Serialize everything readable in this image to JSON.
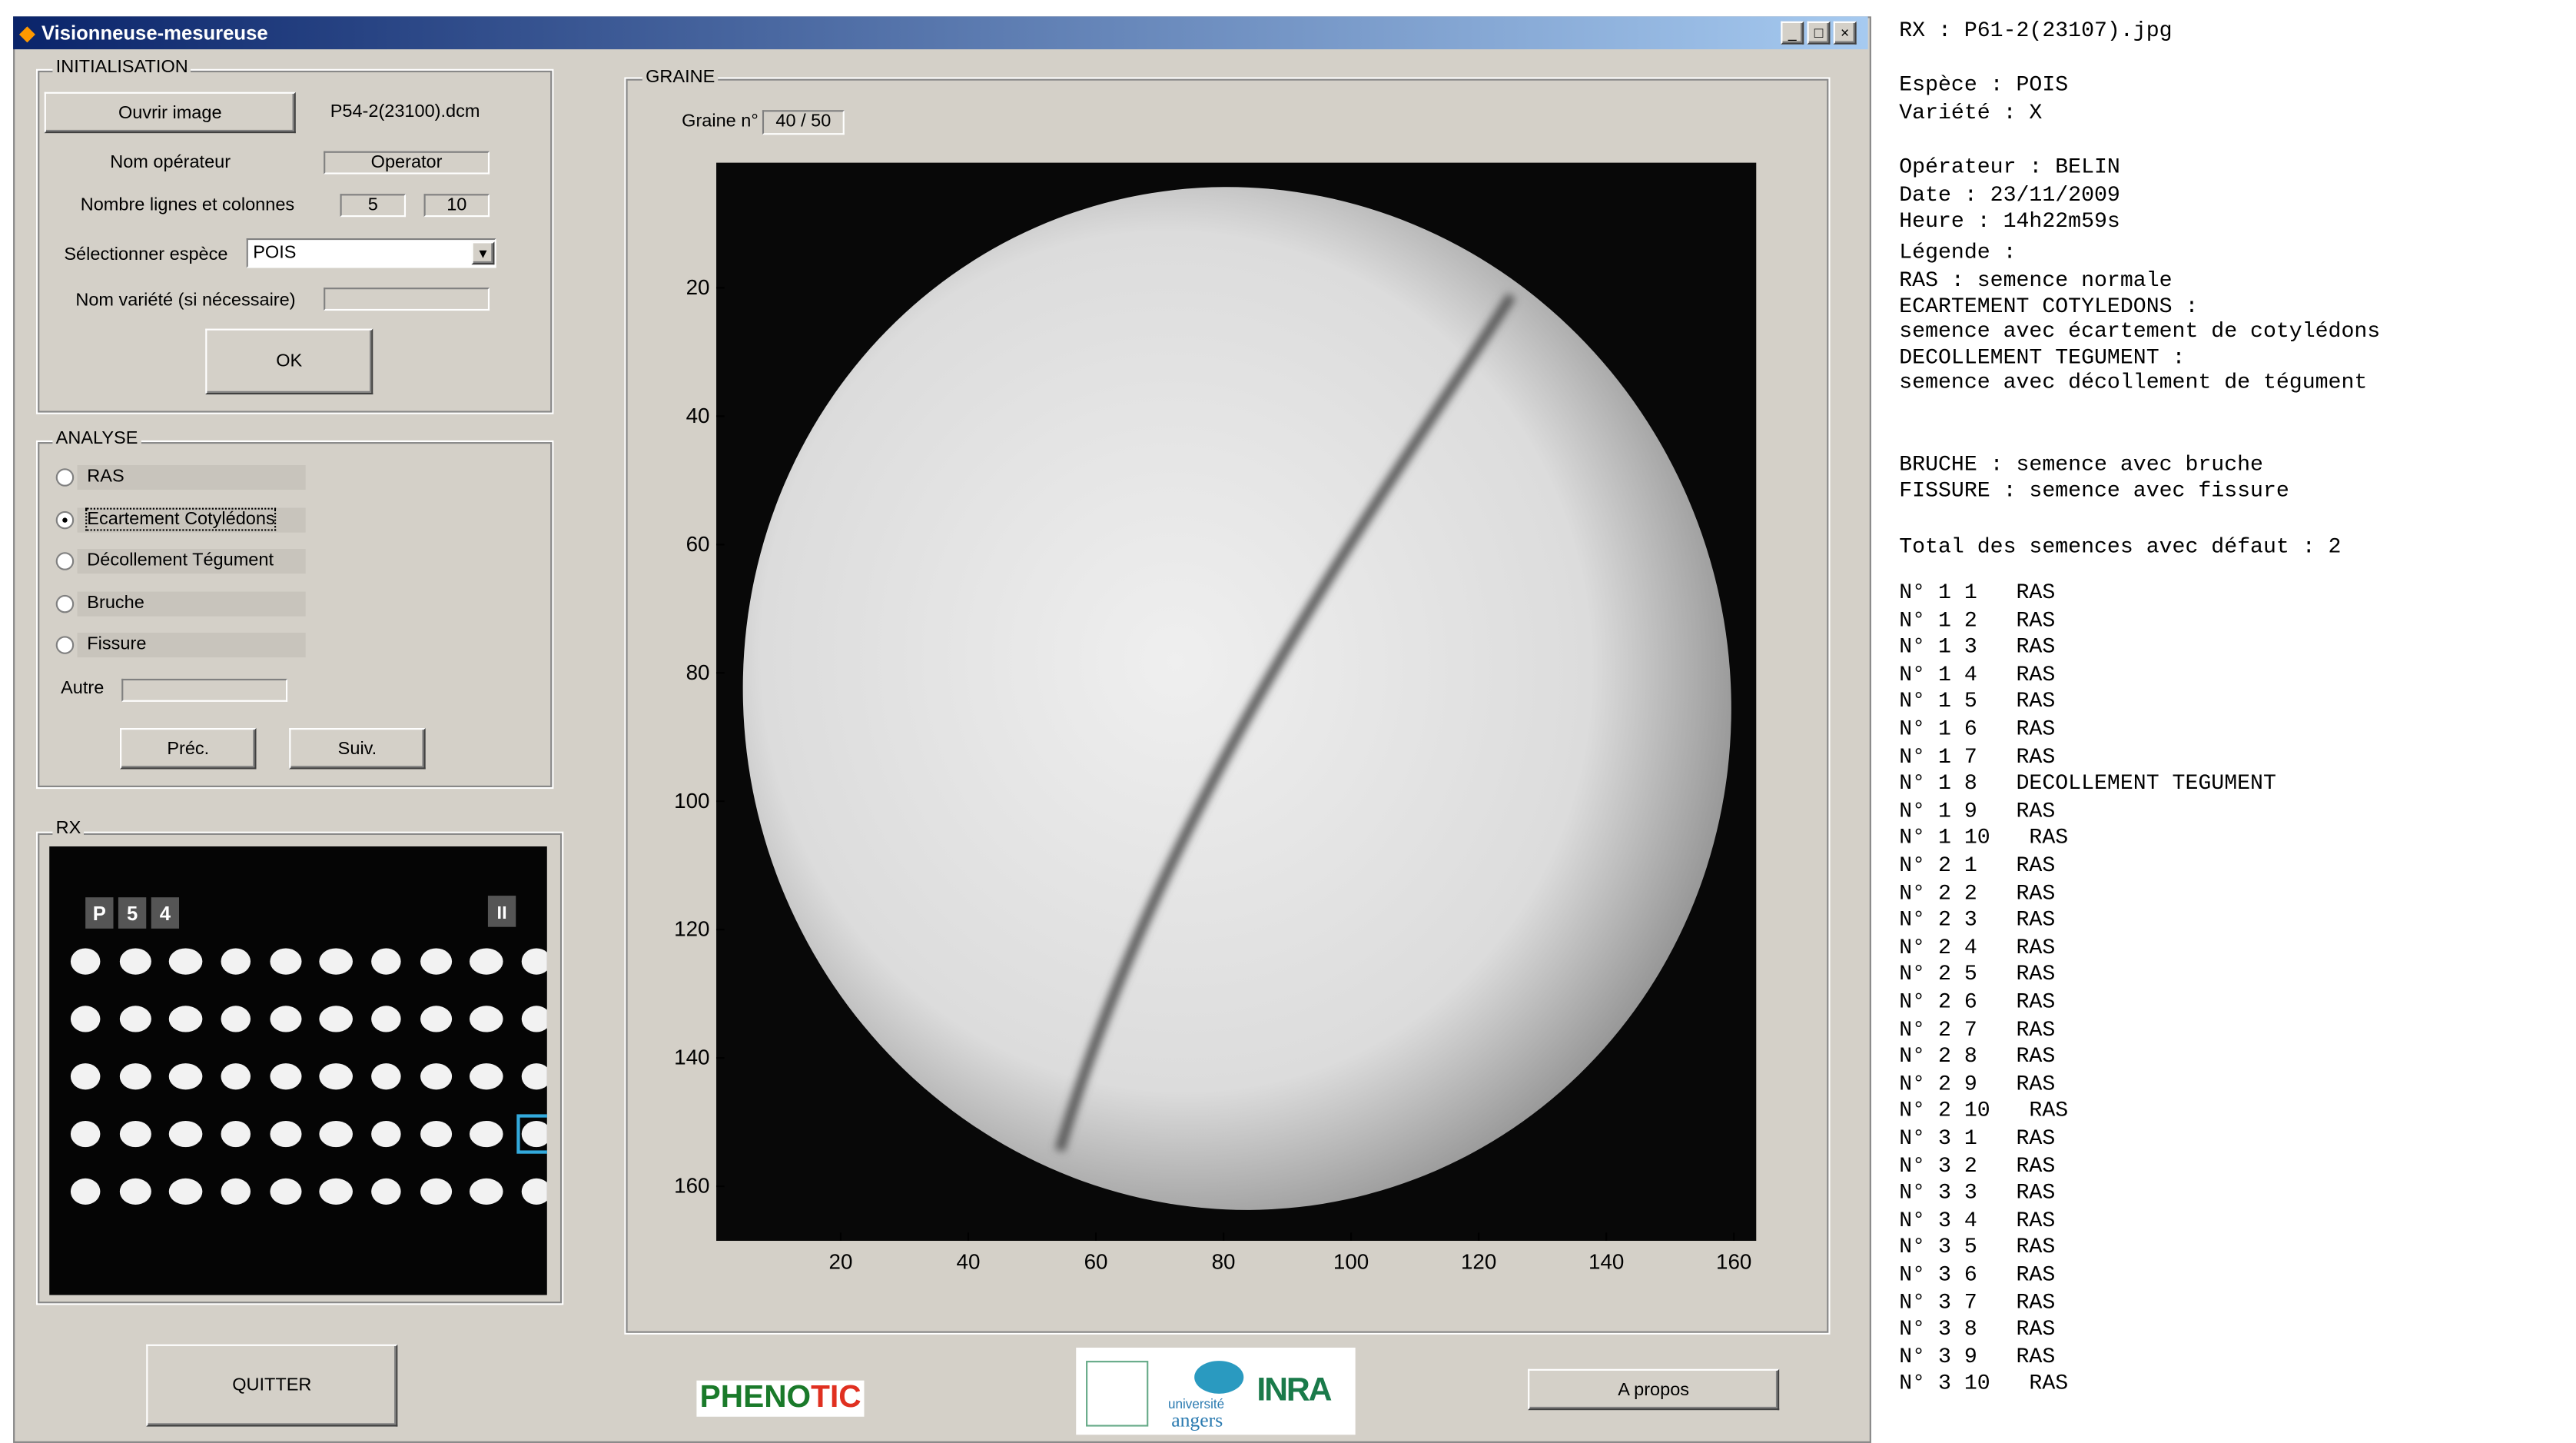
{
  "window": {
    "title": "Visionneuse-mesureuse"
  },
  "init": {
    "legend": "INITIALISATION",
    "open_button": "Ouvrir image",
    "filename": "P54-2(23100).dcm",
    "operator_label": "Nom opérateur",
    "operator_value": "Operator",
    "rows_cols_label": "Nombre lignes et colonnes",
    "rows": "5",
    "cols": "10",
    "species_label": "Sélectionner espèce",
    "species": "POIS",
    "variety_label": "Nom variété (si nécessaire)",
    "ok": "OK"
  },
  "analysis": {
    "legend": "ANALYSE",
    "options": [
      "RAS",
      "Ecartement Cotylédons",
      "Décollement Tégument",
      "Bruche",
      "Fissure"
    ],
    "selected": 1,
    "other_label": "Autre",
    "prev": "Préc.",
    "next": "Suiv."
  },
  "rx": {
    "legend": "RX",
    "tags": [
      "P",
      "5",
      "4"
    ],
    "side_tag": "II"
  },
  "graine": {
    "legend": "GRAINE",
    "seed_label": "Graine n°",
    "seed_value": "40 / 50",
    "xlim": [
      0.5,
      163.5
    ],
    "ylim": [
      0.5,
      168.5
    ],
    "xticks": [
      20,
      40,
      60,
      80,
      100,
      120,
      140,
      160
    ],
    "yticks": [
      20,
      40,
      60,
      80,
      100,
      120,
      140,
      160
    ]
  },
  "footer": {
    "quit": "QUITTER",
    "brand_a": "PHENO",
    "brand_b": "TIC",
    "univ_a": "université",
    "univ_b": "angers",
    "inra": "INRA",
    "about": "A propos"
  },
  "report": {
    "header": [
      "RX : P61-2(23107).jpg",
      "Espèce : POIS",
      "Variété : X",
      "Opérateur : BELIN",
      "Date : 23/11/2009",
      "Heure : 14h22m59s",
      "Légende :",
      "RAS : semence normale",
      "ECARTEMENT COTYLEDONS :",
      "semence avec écartement de cotylédons",
      "DECOLLEMENT TEGUMENT :",
      "semence avec décollement de tégument",
      "BRUCHE : semence avec bruche",
      "FISSURE : semence avec fissure",
      "Total des semences avec défaut : 2"
    ],
    "entries": [
      "N° 1 1   RAS",
      "N° 1 2   RAS",
      "N° 1 3   RAS",
      "N° 1 4   RAS",
      "N° 1 5   RAS",
      "N° 1 6   RAS",
      "N° 1 7   RAS",
      "N° 1 8   DECOLLEMENT TEGUMENT",
      "N° 1 9   RAS",
      "N° 1 10   RAS",
      "N° 2 1   RAS",
      "N° 2 2   RAS",
      "N° 2 3   RAS",
      "N° 2 4   RAS",
      "N° 2 5   RAS",
      "N° 2 6   RAS",
      "N° 2 7   RAS",
      "N° 2 8   RAS",
      "N° 2 9   RAS",
      "N° 2 10   RAS",
      "N° 3 1   RAS",
      "N° 3 2   RAS",
      "N° 3 3   RAS",
      "N° 3 4   RAS",
      "N° 3 5   RAS",
      "N° 3 6   RAS",
      "N° 3 7   RAS",
      "N° 3 8   RAS",
      "N° 3 9   RAS",
      "N° 3 10   RAS"
    ]
  }
}
